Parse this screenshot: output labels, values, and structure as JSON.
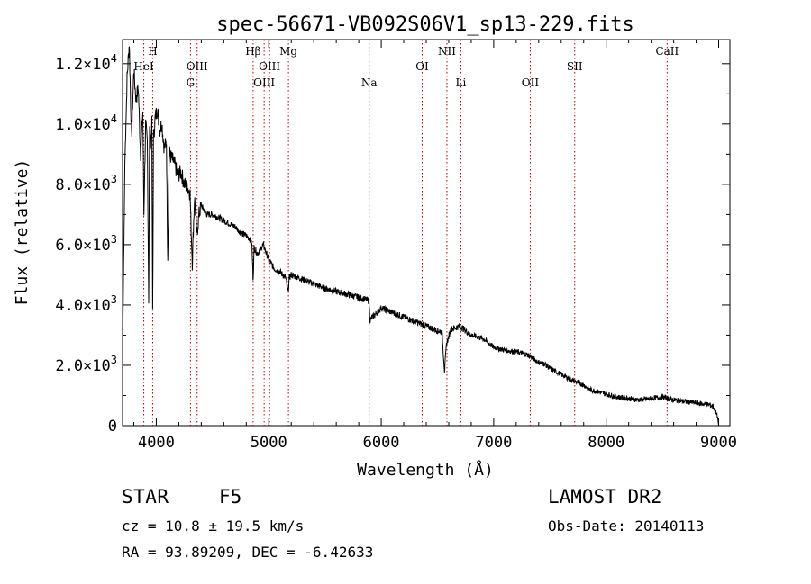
{
  "chart_data": {
    "type": "line",
    "title": "spec-56671-VB092S06V1_sp13-229.fits",
    "xlabel": "Wavelength (Å)",
    "ylabel": "Flux (relative)",
    "xlim": [
      3700,
      9100
    ],
    "ylim": [
      0,
      12800
    ],
    "x_ticks": [
      {
        "value": 4000,
        "label": "4000"
      },
      {
        "value": 5000,
        "label": "5000"
      },
      {
        "value": 6000,
        "label": "6000"
      },
      {
        "value": 7000,
        "label": "7000"
      },
      {
        "value": 8000,
        "label": "8000"
      },
      {
        "value": 9000,
        "label": "9000"
      }
    ],
    "y_ticks": [
      {
        "value": 0,
        "base": "0",
        "exp": ""
      },
      {
        "value": 2000,
        "base": "2.0×10",
        "exp": "3"
      },
      {
        "value": 4000,
        "base": "4.0×10",
        "exp": "3"
      },
      {
        "value": 6000,
        "base": "6.0×10",
        "exp": "3"
      },
      {
        "value": 8000,
        "base": "8.0×10",
        "exp": "3"
      },
      {
        "value": 10000,
        "base": "1.0×10",
        "exp": "4"
      },
      {
        "value": 12000,
        "base": "1.2×10",
        "exp": "4"
      }
    ],
    "grid": false,
    "series": [
      {
        "name": "flux",
        "x": [
          3700,
          3720,
          3740,
          3760,
          3780,
          3800,
          3820,
          3840,
          3860,
          3880,
          3890,
          3905,
          3920,
          3933,
          3940,
          3950,
          3960,
          3968,
          3975,
          3990,
          4010,
          4030,
          4050,
          4070,
          4090,
          4102,
          4115,
          4130,
          4160,
          4190,
          4220,
          4250,
          4280,
          4300,
          4320,
          4340,
          4360,
          4380,
          4400,
          4450,
          4500,
          4550,
          4600,
          4650,
          4700,
          4750,
          4800,
          4830,
          4850,
          4861,
          4870,
          4900,
          4950,
          5000,
          5050,
          5100,
          5150,
          5172,
          5183,
          5200,
          5300,
          5400,
          5500,
          5600,
          5700,
          5800,
          5890,
          5900,
          6000,
          6100,
          6200,
          6300,
          6400,
          6500,
          6540,
          6563,
          6580,
          6620,
          6700,
          6800,
          6900,
          7000,
          7100,
          7200,
          7300,
          7400,
          7450,
          7500,
          7600,
          7700,
          7800,
          7850,
          7900,
          8000,
          8100,
          8200,
          8300,
          8400,
          8500,
          8600,
          8700,
          8800,
          8900,
          8950,
          8990,
          9000
        ],
        "y": [
          2200,
          8600,
          11500,
          12700,
          9500,
          11800,
          10800,
          11200,
          9000,
          10400,
          7000,
          10000,
          9400,
          4000,
          9800,
          9300,
          10000,
          3400,
          9500,
          10200,
          10500,
          9800,
          10000,
          9200,
          9400,
          5500,
          9100,
          8900,
          8700,
          8300,
          8400,
          8000,
          7900,
          7700,
          5400,
          7600,
          6300,
          7000,
          7300,
          7000,
          7000,
          6900,
          6800,
          6700,
          6600,
          6400,
          6300,
          6200,
          6000,
          4800,
          5900,
          5700,
          6000,
          5500,
          5200,
          5100,
          4900,
          4400,
          4900,
          5000,
          4850,
          4700,
          4550,
          4450,
          4350,
          4250,
          4150,
          3500,
          3900,
          3750,
          3600,
          3450,
          3300,
          3150,
          3100,
          1800,
          2700,
          3200,
          3300,
          3000,
          2900,
          2600,
          2500,
          2450,
          2350,
          2100,
          2050,
          1900,
          1700,
          1500,
          1350,
          1200,
          1150,
          1050,
          950,
          900,
          850,
          900,
          950,
          850,
          800,
          750,
          700,
          650,
          300,
          0
        ]
      }
    ],
    "line_markers": [
      {
        "label": "HeI",
        "wavelength": 3889,
        "row": 2
      },
      {
        "label": "H",
        "wavelength": 3968,
        "row": 1
      },
      {
        "label": "G",
        "wavelength": 4304,
        "row": 3
      },
      {
        "label": "OIII",
        "wavelength": 4363,
        "row": 2
      },
      {
        "label": "Hβ",
        "wavelength": 4861,
        "row": 1
      },
      {
        "label": "OIII",
        "wavelength": 4959,
        "row": 3
      },
      {
        "label": "OIII",
        "wavelength": 5007,
        "row": 2
      },
      {
        "label": "Mg",
        "wavelength": 5175,
        "row": 1
      },
      {
        "label": "Na",
        "wavelength": 5893,
        "row": 3
      },
      {
        "label": "OI",
        "wavelength": 6364,
        "row": 2
      },
      {
        "label": "NII",
        "wavelength": 6584,
        "row": 1
      },
      {
        "label": "Li",
        "wavelength": 6708,
        "row": 3
      },
      {
        "label": "OII",
        "wavelength": 7325,
        "row": 3
      },
      {
        "label": "SII",
        "wavelength": 7720,
        "row": 2
      },
      {
        "label": "CaII",
        "wavelength": 8542,
        "row": 1
      }
    ]
  },
  "info": {
    "class": "STAR",
    "subclass": "F5",
    "survey": "LAMOST DR2",
    "cz": "cz = 10.8 ± 19.5 km/s",
    "obs_date": "Obs-Date: 20140113",
    "radec": "RA =  93.89209, DEC =  -6.42633"
  }
}
